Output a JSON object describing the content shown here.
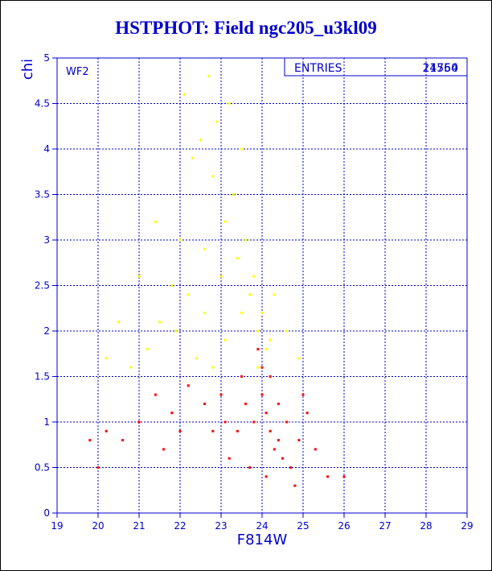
{
  "title": "HSTPHOT: Field ngc205_u3kl09",
  "chart_data": {
    "type": "scatter",
    "title": "HSTPHOT: Field ngc205_u3kl09",
    "xlabel": "F814W",
    "ylabel": "chi",
    "xlim": [
      19,
      29
    ],
    "ylim": [
      0,
      5
    ],
    "x_ticks": [
      "19",
      "20",
      "21",
      "22",
      "23",
      "24",
      "25",
      "26",
      "27",
      "28",
      "29"
    ],
    "y_ticks": [
      "0",
      "0.5",
      "1",
      "1.5",
      "2",
      "2.5",
      "3",
      "3.5",
      "4",
      "4.5",
      "5"
    ],
    "grid": true,
    "panel_label": "WF2",
    "stats_box": {
      "label": "ENTRIES",
      "values": [
        "21760",
        "14554"
      ]
    },
    "series": [
      {
        "color": "#ffff00",
        "points": [
          [
            22.1,
            4.6
          ],
          [
            22.5,
            4.1
          ],
          [
            22.8,
            3.7
          ],
          [
            23.1,
            3.2
          ],
          [
            23.4,
            2.8
          ],
          [
            23.7,
            2.4
          ],
          [
            23.9,
            2.0
          ],
          [
            22.3,
            3.9
          ],
          [
            22.9,
            4.3
          ],
          [
            23.3,
            3.5
          ],
          [
            22.0,
            3.0
          ],
          [
            21.8,
            2.5
          ],
          [
            21.5,
            2.1
          ],
          [
            21.2,
            1.8
          ],
          [
            20.8,
            1.6
          ],
          [
            23.6,
            3.0
          ],
          [
            23.8,
            2.6
          ],
          [
            24.0,
            2.2
          ],
          [
            24.2,
            1.9
          ],
          [
            22.6,
            2.9
          ],
          [
            22.2,
            2.4
          ],
          [
            21.9,
            2.0
          ],
          [
            23.0,
            2.6
          ],
          [
            23.5,
            2.2
          ],
          [
            20.2,
            1.7
          ],
          [
            20.5,
            2.1
          ],
          [
            21.0,
            2.6
          ],
          [
            21.4,
            3.2
          ],
          [
            22.7,
            4.8
          ],
          [
            23.2,
            4.5
          ],
          [
            23.5,
            4.0
          ],
          [
            24.3,
            2.4
          ],
          [
            24.6,
            2.0
          ],
          [
            24.9,
            1.7
          ],
          [
            22.4,
            1.7
          ],
          [
            23.1,
            1.9
          ],
          [
            22.6,
            2.2
          ],
          [
            23.9,
            1.6
          ],
          [
            24.1,
            1.8
          ],
          [
            22.8,
            1.6
          ]
        ]
      },
      {
        "color": "#ff0000",
        "points": [
          [
            24.2,
            0.9
          ],
          [
            24.3,
            0.7
          ],
          [
            24.1,
            1.1
          ],
          [
            24.4,
            0.8
          ],
          [
            24.0,
            1.3
          ],
          [
            23.8,
            1.0
          ],
          [
            24.5,
            0.6
          ],
          [
            24.6,
            1.0
          ],
          [
            23.6,
            1.2
          ],
          [
            23.4,
            0.9
          ],
          [
            24.7,
            0.5
          ],
          [
            24.9,
            0.8
          ],
          [
            25.1,
            1.1
          ],
          [
            23.0,
            1.3
          ],
          [
            22.6,
            1.2
          ],
          [
            22.2,
            1.4
          ],
          [
            21.8,
            1.1
          ],
          [
            21.4,
            1.3
          ],
          [
            21.0,
            1.0
          ],
          [
            20.6,
            0.8
          ],
          [
            20.2,
            0.9
          ],
          [
            19.8,
            0.8
          ],
          [
            20.0,
            0.5
          ],
          [
            22.8,
            0.9
          ],
          [
            23.2,
            0.6
          ],
          [
            23.7,
            0.5
          ],
          [
            24.8,
            0.3
          ],
          [
            25.3,
            0.7
          ],
          [
            25.6,
            0.4
          ],
          [
            26.0,
            0.4
          ],
          [
            24.0,
            1.6
          ],
          [
            23.9,
            1.8
          ],
          [
            24.2,
            1.5
          ],
          [
            23.5,
            1.5
          ],
          [
            21.6,
            0.7
          ],
          [
            22.0,
            0.9
          ],
          [
            25.0,
            1.3
          ],
          [
            24.4,
            1.2
          ],
          [
            23.1,
            1.0
          ],
          [
            24.1,
            0.4
          ]
        ]
      }
    ]
  }
}
